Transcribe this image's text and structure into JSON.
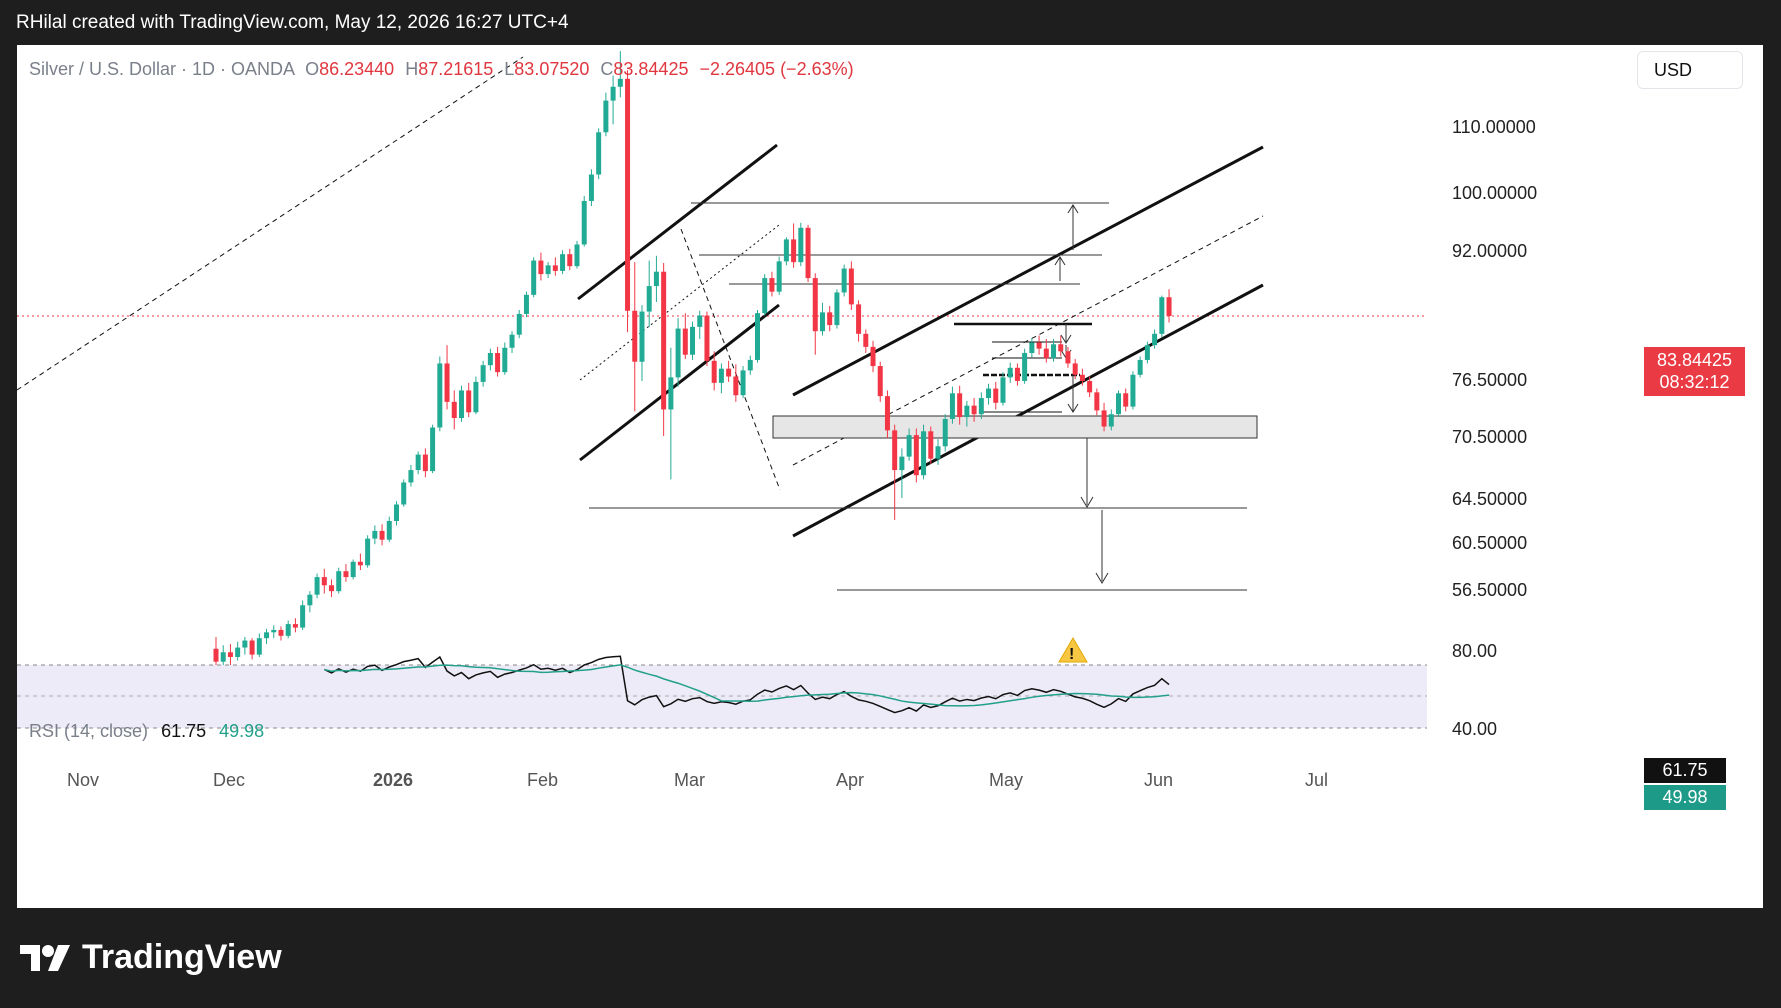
{
  "caption": "RHilal created with TradingView.com, May 12, 2026 16:27 UTC+4",
  "legend": {
    "symbol": "Silver / U.S. Dollar · 1D · OANDA",
    "open_label": "O",
    "open": "86.23440",
    "high_label": "H",
    "high": "87.21615",
    "low_label": "L",
    "low": "83.07520",
    "close_label": "C",
    "close": "83.84425",
    "change": "−2.26405 (−2.63%)"
  },
  "currency_button": "USD",
  "price_badge": {
    "price": "83.84425",
    "countdown": "08:32:12"
  },
  "rsi": {
    "label": "RSI (14, close)",
    "value": "61.75",
    "ma_value": "49.98",
    "upper_label": "80.00",
    "lower_label": "40.00"
  },
  "logo_text": "TradingView",
  "colors": {
    "up": "#22ab94",
    "down": "#f23645",
    "rsi_line": "#111111",
    "rsi_ma": "#22a08a",
    "badge": "#ea3a44",
    "warning": "#f7c744"
  },
  "chart_data": {
    "type": "candlestick",
    "y_axis_ticks": [
      "110.00000",
      "100.00000",
      "92.00000",
      "76.50000",
      "70.50000",
      "64.50000",
      "60.50000",
      "56.50000"
    ],
    "x_axis_ticks": [
      "Nov",
      "Dec",
      "2026",
      "Feb",
      "Mar",
      "Apr",
      "May",
      "Jun",
      "Jul"
    ],
    "last_close": 83.84425,
    "ohlc": [
      [
        51.5,
        52.5,
        48.2,
        50.4
      ],
      [
        50.4,
        51.8,
        49.6,
        51.2
      ],
      [
        51.2,
        51.9,
        50.1,
        50.8
      ],
      [
        50.8,
        52.1,
        50.5,
        51.6
      ],
      [
        51.6,
        52.5,
        51.0,
        52.2
      ],
      [
        52.2,
        52.4,
        50.6,
        51.0
      ],
      [
        51.0,
        52.8,
        50.8,
        52.4
      ],
      [
        52.4,
        53.2,
        51.9,
        52.9
      ],
      [
        52.9,
        53.5,
        52.4,
        53.1
      ],
      [
        53.1,
        53.4,
        52.2,
        52.6
      ],
      [
        52.6,
        53.9,
        52.4,
        53.6
      ],
      [
        53.6,
        54.1,
        52.9,
        53.3
      ],
      [
        53.3,
        55.6,
        53.1,
        55.2
      ],
      [
        55.2,
        56.4,
        54.6,
        56.1
      ],
      [
        56.1,
        57.9,
        55.8,
        57.6
      ],
      [
        57.6,
        58.3,
        56.2,
        56.9
      ],
      [
        56.9,
        57.4,
        55.9,
        56.4
      ],
      [
        56.4,
        58.4,
        56.2,
        58.1
      ],
      [
        58.1,
        58.7,
        57.2,
        57.6
      ],
      [
        57.6,
        59.1,
        57.4,
        58.9
      ],
      [
        58.9,
        59.6,
        58.2,
        58.6
      ],
      [
        58.6,
        61.2,
        58.4,
        60.9
      ],
      [
        60.9,
        62.1,
        60.4,
        61.6
      ],
      [
        61.6,
        62.2,
        60.3,
        60.8
      ],
      [
        60.8,
        62.9,
        60.6,
        62.5
      ],
      [
        62.5,
        64.3,
        62.1,
        64.0
      ],
      [
        64.0,
        66.4,
        63.8,
        66.1
      ],
      [
        66.1,
        67.8,
        65.7,
        67.3
      ],
      [
        67.3,
        69.1,
        66.9,
        68.8
      ],
      [
        68.8,
        69.4,
        66.6,
        67.2
      ],
      [
        67.2,
        71.8,
        67.0,
        71.5
      ],
      [
        71.5,
        79.2,
        71.1,
        78.4
      ],
      [
        78.4,
        80.5,
        73.4,
        74.2
      ],
      [
        74.2,
        75.4,
        71.3,
        72.5
      ],
      [
        72.5,
        75.9,
        72.1,
        75.4
      ],
      [
        75.4,
        76.2,
        72.6,
        73.1
      ],
      [
        73.1,
        76.9,
        72.9,
        76.3
      ],
      [
        76.3,
        78.7,
        75.8,
        78.2
      ],
      [
        78.2,
        80.1,
        77.6,
        79.6
      ],
      [
        79.6,
        80.3,
        76.9,
        77.4
      ],
      [
        77.4,
        80.8,
        77.1,
        80.2
      ],
      [
        80.2,
        82.1,
        79.6,
        81.7
      ],
      [
        81.7,
        84.6,
        81.3,
        84.1
      ],
      [
        84.1,
        86.9,
        83.7,
        86.5
      ],
      [
        86.5,
        91.2,
        86.2,
        90.8
      ],
      [
        90.8,
        91.8,
        88.3,
        89.1
      ],
      [
        89.1,
        90.6,
        88.6,
        90.2
      ],
      [
        90.2,
        91.2,
        88.9,
        89.5
      ],
      [
        89.5,
        92.1,
        89.1,
        91.6
      ],
      [
        91.6,
        92.3,
        89.6,
        90.1
      ],
      [
        90.1,
        93.4,
        89.8,
        92.9
      ],
      [
        92.9,
        99.6,
        92.6,
        98.9
      ],
      [
        98.9,
        103.6,
        98.2,
        102.8
      ],
      [
        102.8,
        109.8,
        102.1,
        109.2
      ],
      [
        109.2,
        115.2,
        108.6,
        114.0
      ],
      [
        114.0,
        117.8,
        110.4,
        116.1
      ],
      [
        116.1,
        121.5,
        114.5,
        117.3
      ],
      [
        117.3,
        118.6,
        82.0,
        84.5
      ],
      [
        84.5,
        90.6,
        73.2,
        78.6
      ],
      [
        78.6,
        85.2,
        76.4,
        84.4
      ],
      [
        84.4,
        90.8,
        82.6,
        87.6
      ],
      [
        87.6,
        91.4,
        85.6,
        89.4
      ],
      [
        89.4,
        90.5,
        70.6,
        73.4
      ],
      [
        73.4,
        80.2,
        66.4,
        76.8
      ],
      [
        76.8,
        83.6,
        75.8,
        82.4
      ],
      [
        82.4,
        84.2,
        78.9,
        79.4
      ],
      [
        79.4,
        83.2,
        78.8,
        82.6
      ],
      [
        82.6,
        84.5,
        81.2,
        83.9
      ],
      [
        83.9,
        84.4,
        78.1,
        78.7
      ],
      [
        78.7,
        79.8,
        75.4,
        76.2
      ],
      [
        76.2,
        78.4,
        75.1,
        77.8
      ],
      [
        77.8,
        78.7,
        76.3,
        76.9
      ],
      [
        76.9,
        78.3,
        74.2,
        74.9
      ],
      [
        74.9,
        78.1,
        74.6,
        77.6
      ],
      [
        77.6,
        79.3,
        77.1,
        78.8
      ],
      [
        78.8,
        84.6,
        78.5,
        84.2
      ],
      [
        84.2,
        89.1,
        83.9,
        88.6
      ],
      [
        88.6,
        89.4,
        86.3,
        86.9
      ],
      [
        86.9,
        91.3,
        86.5,
        90.7
      ],
      [
        90.7,
        93.9,
        90.2,
        93.6
      ],
      [
        93.6,
        95.8,
        89.9,
        90.6
      ],
      [
        90.6,
        95.9,
        90.1,
        95.2
      ],
      [
        95.2,
        95.6,
        88.1,
        88.6
      ],
      [
        88.6,
        89.2,
        79.4,
        82.1
      ],
      [
        82.1,
        85.5,
        81.6,
        84.3
      ],
      [
        84.3,
        85.1,
        82.1,
        82.8
      ],
      [
        82.8,
        87.2,
        82.4,
        86.8
      ],
      [
        86.8,
        90.3,
        86.3,
        89.8
      ],
      [
        89.8,
        90.7,
        84.6,
        85.3
      ],
      [
        85.3,
        85.8,
        80.9,
        81.8
      ],
      [
        81.8,
        82.3,
        79.6,
        80.3
      ],
      [
        80.3,
        81.0,
        77.4,
        78.1
      ],
      [
        78.1,
        78.6,
        74.2,
        74.8
      ],
      [
        74.8,
        75.4,
        70.4,
        71.2
      ],
      [
        71.2,
        71.8,
        62.6,
        67.3
      ],
      [
        67.3,
        69.4,
        64.6,
        68.6
      ],
      [
        68.6,
        71.4,
        68.2,
        70.7
      ],
      [
        70.7,
        71.4,
        66.1,
        66.8
      ],
      [
        66.8,
        71.8,
        66.4,
        71.1
      ],
      [
        71.1,
        71.6,
        67.9,
        68.4
      ],
      [
        68.4,
        70.3,
        67.8,
        69.6
      ],
      [
        69.6,
        72.9,
        69.1,
        72.4
      ],
      [
        72.4,
        75.8,
        71.9,
        75.1
      ],
      [
        75.1,
        75.9,
        71.8,
        72.6
      ],
      [
        72.6,
        74.3,
        71.6,
        73.8
      ],
      [
        73.8,
        74.6,
        72.1,
        72.9
      ],
      [
        72.9,
        75.2,
        72.4,
        74.6
      ],
      [
        74.6,
        76.1,
        73.9,
        75.6
      ],
      [
        75.6,
        76.3,
        73.4,
        74.1
      ],
      [
        74.1,
        77.4,
        73.8,
        76.8
      ],
      [
        76.8,
        78.5,
        76.2,
        77.9
      ],
      [
        77.9,
        78.4,
        75.9,
        76.4
      ],
      [
        76.4,
        80.1,
        76.1,
        79.6
      ],
      [
        79.6,
        81.3,
        79.1,
        80.8
      ],
      [
        80.8,
        81.6,
        79.4,
        80.1
      ],
      [
        80.1,
        81.2,
        78.5,
        79.0
      ],
      [
        79.0,
        81.2,
        78.6,
        80.6
      ],
      [
        80.6,
        81.6,
        79.2,
        79.8
      ],
      [
        79.8,
        80.3,
        77.9,
        78.4
      ],
      [
        78.4,
        78.9,
        76.6,
        77.1
      ],
      [
        77.1,
        77.8,
        75.9,
        76.4
      ],
      [
        76.4,
        76.9,
        74.7,
        75.2
      ],
      [
        75.2,
        75.6,
        72.8,
        73.3
      ],
      [
        73.3,
        74.1,
        71.1,
        71.6
      ],
      [
        71.6,
        73.4,
        71.2,
        72.9
      ],
      [
        72.9,
        75.4,
        72.6,
        75.1
      ],
      [
        75.1,
        75.6,
        73.2,
        73.7
      ],
      [
        73.7,
        77.5,
        73.4,
        77.1
      ],
      [
        77.1,
        79.2,
        76.8,
        78.8
      ],
      [
        78.8,
        80.9,
        78.4,
        80.5
      ],
      [
        80.5,
        82.3,
        80.1,
        81.8
      ],
      [
        81.8,
        86.4,
        81.4,
        86.2
      ],
      [
        86.2,
        87.2,
        83.1,
        83.84
      ]
    ],
    "annotations": [
      "ascending channel (Feb–Mar)",
      "ascending channel (Mar–May)",
      "support zone 70.5–72.5",
      "projection targets 64.5 and 56.5"
    ]
  }
}
